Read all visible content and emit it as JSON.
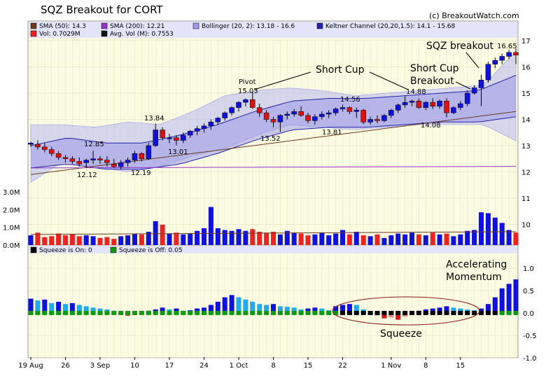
{
  "title": "SQZ Breakout for CORT",
  "credit": "(c) BreakoutWatch.com",
  "legend_price": [
    {
      "label": "SMA (50): 14.3",
      "color": "#6b3a1f"
    },
    {
      "label": "SMA (200): 12.21",
      "color": "#9933cc"
    },
    {
      "label": "Bollinger (20, 2): 13.18 - 16.6",
      "color": "#9999ee"
    },
    {
      "label": "Keltner Channel (20,20,1.5): 14.1 - 15.68",
      "color": "#2222aa"
    },
    {
      "label": "Vol: 0.7029M",
      "color": "#ee2222"
    },
    {
      "label": "Avg. Vol (M): 0.7553",
      "color": "#111111"
    }
  ],
  "legend_squeeze": [
    {
      "label": "Squeeze is On: 0",
      "color": "#000000"
    },
    {
      "label": "Squeeze is Off: 0.05",
      "color": "#119911"
    }
  ],
  "annotations": {
    "short_cup": "Short Cup",
    "pivot_label": "Pivot",
    "pivot_value": "15.03",
    "breakout_line1": "Short Cup",
    "breakout_line2": "Breakout",
    "sqz_breakout": "SQZ breakout",
    "accel_line1": "Accelerating",
    "accel_line2": "Momentum",
    "squeeze": "Squeeze"
  },
  "price_labels": [
    "12.85",
    "12.12",
    "13.84",
    "13.01",
    "12.19",
    "13.52",
    "14.56",
    "13.81",
    "14.88",
    "14.08",
    "16.65"
  ],
  "chart_data": [
    {
      "type": "candlestick",
      "y_ticks": [
        "10",
        "11",
        "12",
        "13",
        "14",
        "15",
        "16",
        "17"
      ],
      "ylim": [
        9.3,
        17.1
      ],
      "x_tick_labels": [
        "19 Aug",
        "26",
        "3 Sep",
        "10",
        "17",
        "24",
        "1 Oct",
        "8",
        "15",
        "22",
        "1 Nov",
        "8",
        "15"
      ],
      "series": [
        {
          "name": "Price",
          "candles": [
            [
              13.05,
              13.15,
              12.95,
              13.1
            ],
            [
              13.05,
              13.2,
              12.85,
              12.95
            ],
            [
              12.95,
              13.1,
              12.75,
              12.85
            ],
            [
              12.85,
              12.95,
              12.6,
              12.7
            ],
            [
              12.7,
              12.8,
              12.45,
              12.55
            ],
            [
              12.55,
              12.65,
              12.35,
              12.5
            ],
            [
              12.5,
              12.6,
              12.3,
              12.4
            ],
            [
              12.4,
              12.55,
              12.2,
              12.3
            ],
            [
              12.35,
              12.5,
              12.15,
              12.45
            ],
            [
              12.45,
              12.8,
              12.3,
              12.5
            ],
            [
              12.5,
              12.6,
              12.3,
              12.45
            ],
            [
              12.45,
              12.6,
              12.2,
              12.35
            ],
            [
              12.3,
              12.5,
              12.15,
              12.2
            ],
            [
              12.2,
              12.45,
              12.1,
              12.35
            ],
            [
              12.35,
              12.55,
              12.2,
              12.45
            ],
            [
              12.45,
              12.8,
              12.35,
              12.7
            ],
            [
              12.7,
              12.75,
              12.4,
              12.5
            ],
            [
              12.5,
              13.1,
              12.45,
              13.0
            ],
            [
              13.0,
              13.84,
              12.95,
              13.6
            ],
            [
              13.6,
              13.7,
              13.2,
              13.3
            ],
            [
              13.3,
              13.45,
              13.1,
              13.3
            ],
            [
              13.3,
              13.4,
              13.01,
              13.2
            ],
            [
              13.2,
              13.5,
              13.1,
              13.4
            ],
            [
              13.4,
              13.6,
              13.3,
              13.55
            ],
            [
              13.55,
              13.75,
              13.4,
              13.65
            ],
            [
              13.65,
              13.85,
              13.5,
              13.75
            ],
            [
              13.75,
              14.0,
              13.6,
              13.9
            ],
            [
              13.9,
              14.1,
              13.8,
              14.05
            ],
            [
              14.05,
              14.3,
              13.95,
              14.25
            ],
            [
              14.25,
              14.5,
              14.15,
              14.45
            ],
            [
              14.45,
              14.7,
              14.3,
              14.65
            ],
            [
              14.65,
              14.8,
              14.5,
              14.75
            ],
            [
              14.75,
              15.03,
              14.4,
              14.45
            ],
            [
              14.45,
              14.6,
              14.1,
              14.25
            ],
            [
              14.25,
              14.35,
              13.9,
              14.0
            ],
            [
              14.0,
              14.1,
              13.7,
              13.9
            ],
            [
              13.9,
              14.2,
              13.52,
              14.15
            ],
            [
              14.15,
              14.3,
              14.0,
              14.2
            ],
            [
              14.2,
              14.4,
              14.1,
              14.3
            ],
            [
              14.3,
              14.5,
              14.1,
              14.15
            ],
            [
              14.15,
              14.25,
              13.85,
              13.95
            ],
            [
              13.95,
              14.2,
              13.8,
              14.1
            ],
            [
              14.1,
              14.3,
              14.0,
              14.2
            ],
            [
              14.2,
              14.35,
              14.05,
              14.25
            ],
            [
              14.25,
              14.45,
              14.15,
              14.4
            ],
            [
              14.4,
              14.56,
              14.3,
              14.45
            ],
            [
              14.45,
              14.5,
              14.2,
              14.3
            ],
            [
              14.3,
              14.45,
              14.05,
              14.35
            ],
            [
              14.35,
              14.4,
              13.81,
              13.9
            ],
            [
              13.9,
              14.1,
              13.8,
              14.0
            ],
            [
              14.0,
              14.15,
              13.85,
              13.95
            ],
            [
              13.95,
              14.2,
              13.9,
              14.15
            ],
            [
              14.15,
              14.4,
              14.05,
              14.35
            ],
            [
              14.35,
              14.6,
              14.25,
              14.55
            ],
            [
              14.55,
              14.88,
              14.45,
              14.65
            ],
            [
              14.65,
              14.75,
              14.5,
              14.7
            ],
            [
              14.7,
              14.8,
              14.4,
              14.45
            ],
            [
              14.45,
              14.7,
              14.35,
              14.65
            ],
            [
              14.65,
              14.8,
              14.4,
              14.5
            ],
            [
              14.5,
              14.75,
              14.4,
              14.7
            ],
            [
              14.7,
              14.8,
              14.08,
              14.25
            ],
            [
              14.25,
              14.5,
              14.2,
              14.45
            ],
            [
              14.45,
              14.7,
              14.35,
              14.6
            ],
            [
              14.6,
              15.1,
              14.5,
              15.0
            ],
            [
              15.0,
              15.3,
              14.95,
              15.2
            ],
            [
              15.2,
              15.7,
              14.5,
              15.5
            ],
            [
              15.5,
              16.2,
              15.4,
              16.1
            ],
            [
              16.1,
              16.35,
              15.95,
              16.25
            ],
            [
              16.25,
              16.5,
              16.1,
              16.4
            ],
            [
              16.4,
              16.65,
              16.3,
              16.55
            ],
            [
              16.55,
              16.7,
              16.1,
              16.45
            ]
          ]
        },
        {
          "name": "SMA (50)",
          "values": [
            11.9,
            14.3
          ]
        },
        {
          "name": "SMA (200)",
          "values": [
            12.15,
            12.21
          ]
        },
        {
          "name": "Bollinger (20, 2)",
          "upper": [
            13.8,
            13.8,
            13.7,
            13.9,
            13.8,
            14.3,
            14.9,
            15.1,
            15.2,
            15.1,
            14.9,
            15.0,
            15.1,
            15.2,
            15.3,
            16.6
          ],
          "lower": [
            11.6,
            12.4,
            12.2,
            12.0,
            12.2,
            12.6,
            12.9,
            13.4,
            13.8,
            13.7,
            13.6,
            13.7,
            13.8,
            13.8,
            13.8,
            13.18
          ]
        },
        {
          "name": "Keltner Channel (20,20,1.5)",
          "upper": [
            13.0,
            13.3,
            13.1,
            13.1,
            13.4,
            13.8,
            14.3,
            14.7,
            14.8,
            14.8,
            14.9,
            15.0,
            15.1,
            15.68
          ],
          "lower": [
            12.15,
            12.3,
            12.1,
            12.1,
            12.3,
            12.7,
            13.2,
            13.6,
            13.7,
            13.7,
            13.8,
            13.9,
            13.9,
            14.1
          ]
        }
      ]
    },
    {
      "type": "bar",
      "y_ticks": [
        "0.0M",
        "1.0M",
        "2.0M",
        "3.0M"
      ],
      "ylim": [
        0,
        3.2
      ],
      "series": [
        {
          "name": "Vol",
          "values": [
            0.55,
            0.7,
            0.45,
            0.5,
            0.65,
            0.55,
            0.6,
            0.5,
            0.55,
            0.5,
            0.4,
            0.45,
            0.35,
            0.5,
            0.55,
            0.65,
            0.6,
            0.75,
            1.35,
            1.15,
            0.65,
            0.7,
            0.6,
            0.65,
            0.8,
            0.95,
            2.15,
            0.95,
            0.85,
            0.8,
            0.9,
            0.8,
            0.9,
            0.75,
            0.7,
            0.75,
            0.6,
            0.8,
            0.7,
            0.65,
            0.55,
            0.6,
            0.7,
            0.55,
            0.65,
            0.85,
            0.6,
            0.75,
            0.55,
            0.5,
            0.6,
            0.4,
            0.55,
            0.65,
            0.6,
            0.7,
            0.6,
            0.55,
            0.7,
            0.6,
            0.65,
            0.5,
            0.6,
            0.8,
            0.85,
            1.85,
            1.8,
            1.55,
            1.25,
            0.85,
            0.7029
          ]
        },
        {
          "name": "Avg. Vol (M)",
          "values": [
            0.6,
            0.7553
          ]
        }
      ]
    },
    {
      "type": "bar",
      "y_ticks": [
        "-1.0",
        "-0.5",
        "0.0",
        "0.5",
        "1.0"
      ],
      "ylim": [
        -1.05,
        1.4
      ],
      "series": [
        {
          "name": "Momentum",
          "values": [
            0.32,
            0.28,
            0.3,
            0.22,
            0.25,
            0.2,
            0.22,
            0.18,
            0.15,
            0.12,
            0.1,
            0.08,
            0.05,
            -0.03,
            -0.06,
            0.02,
            0.04,
            0.05,
            0.08,
            0.12,
            0.08,
            0.1,
            0.05,
            0.06,
            0.1,
            0.12,
            0.18,
            0.25,
            0.35,
            0.4,
            0.35,
            0.3,
            0.25,
            0.2,
            0.18,
            0.2,
            0.15,
            0.14,
            0.12,
            0.08,
            0.1,
            0.12,
            0.1,
            0.06,
            0.15,
            0.18,
            0.2,
            0.18,
            0.08,
            0.04,
            -0.05,
            -0.12,
            -0.1,
            -0.15,
            -0.08,
            0.02,
            0.05,
            0.08,
            0.1,
            0.12,
            0.15,
            0.12,
            0.1,
            0.08,
            0.06,
            0.1,
            0.2,
            0.35,
            0.55,
            0.65,
            0.75
          ]
        },
        {
          "name": "Squeeze is On",
          "value": 0
        },
        {
          "name": "Squeeze is Off",
          "value": 0.05
        }
      ]
    }
  ]
}
